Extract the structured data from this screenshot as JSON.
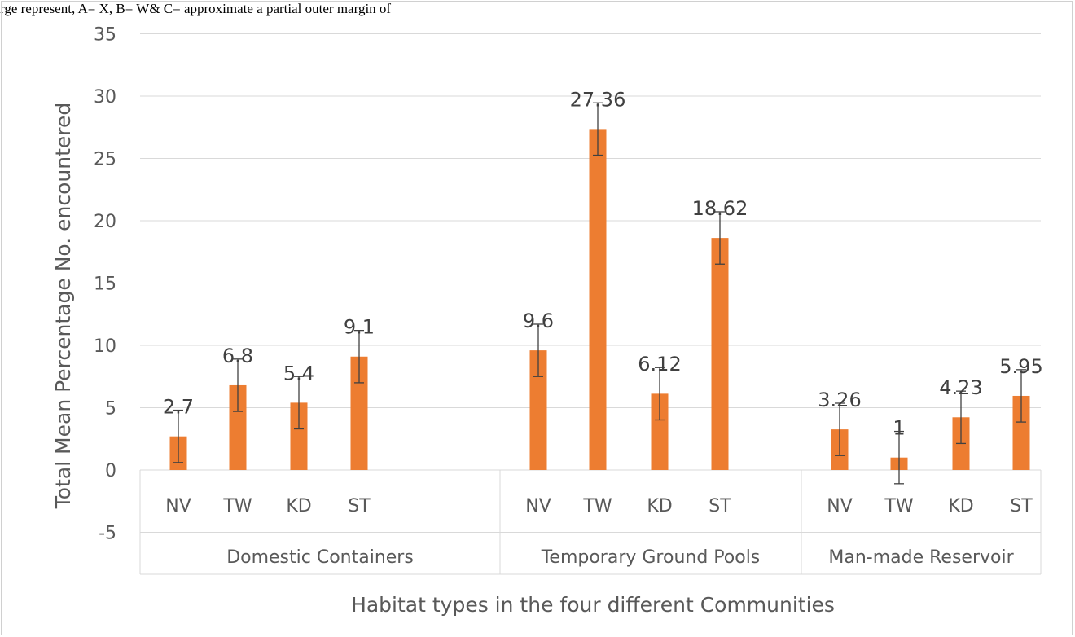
{
  "page": {
    "top_text": "rge represent, A= X, B= W& C= approximate a partial outer margin of"
  },
  "chart_data": {
    "type": "bar",
    "title": "",
    "xlabel": "Habitat types in the four different Communities",
    "ylabel": "Total Mean Percentage No. encountered",
    "ylim": [
      -5,
      35
    ],
    "yticks": [
      -5,
      0,
      5,
      10,
      15,
      20,
      25,
      30,
      35
    ],
    "ytick_labels": [
      "-5",
      "0",
      "5",
      "10",
      "15",
      "20",
      "25",
      "30",
      "35"
    ],
    "grid": true,
    "legend": "none",
    "bar_color": "#ED7D31",
    "groups": [
      {
        "name": "Domestic Containers",
        "categories": [
          "NV",
          "TW",
          "KD",
          "ST"
        ],
        "values": [
          2.7,
          6.8,
          5.4,
          9.1
        ],
        "labels": [
          "2.7",
          "6.8",
          "5.4",
          "9.1"
        ],
        "error": [
          2.1,
          2.1,
          2.1,
          2.1
        ]
      },
      {
        "name": "Temporary Ground Pools",
        "categories": [
          "NV",
          "TW",
          "KD",
          "ST"
        ],
        "values": [
          9.6,
          27.36,
          6.12,
          18.62
        ],
        "labels": [
          "9.6",
          "27.36",
          "6.12",
          "18.62"
        ],
        "error": [
          2.1,
          2.1,
          2.1,
          2.1
        ]
      },
      {
        "name": "Man-made Reservoir",
        "categories": [
          "NV",
          "TW",
          "KD",
          "ST"
        ],
        "values": [
          3.26,
          1,
          4.23,
          5.95
        ],
        "labels": [
          "3.26",
          "1",
          "4.23",
          "5.95"
        ],
        "error": [
          2.1,
          2.1,
          2.1,
          2.1
        ]
      }
    ]
  }
}
